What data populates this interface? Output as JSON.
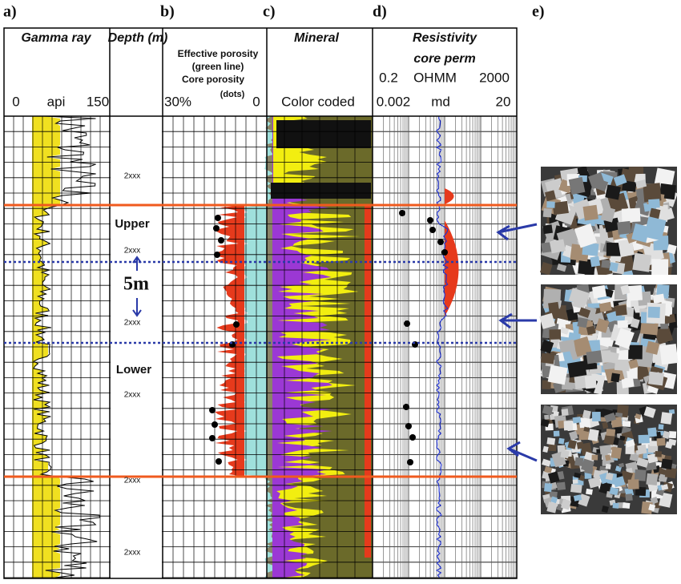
{
  "panels": {
    "a": "a)",
    "b": "b)",
    "c": "c)",
    "d": "d)",
    "e": "e)"
  },
  "headers": {
    "gamma": "Gamma ray",
    "depth": "Depth (m)",
    "porosity": [
      "Effective porosity",
      "(green line)",
      "Core porosity",
      "(dots)"
    ],
    "mineral": "Mineral",
    "resistivity": "Resistivity",
    "perm": "core perm"
  },
  "scales": {
    "res_min": "0.2",
    "res_unit": "OHMM",
    "res_max": "2000",
    "gr_min": "0",
    "gr_unit": "api",
    "gr_max": "150",
    "por_min": "30%",
    "por_max": "0",
    "mineral": "Color coded",
    "perm_min": "0.002",
    "perm_unit": "md",
    "perm_max": "20"
  },
  "depth_labels": [
    "2xxx",
    "2xxx",
    "2xxx",
    "2xxx",
    "2xxx",
    "2xxx"
  ],
  "zones": {
    "upper": "Upper",
    "lower": "Lower",
    "thickness": "5m"
  }
}
